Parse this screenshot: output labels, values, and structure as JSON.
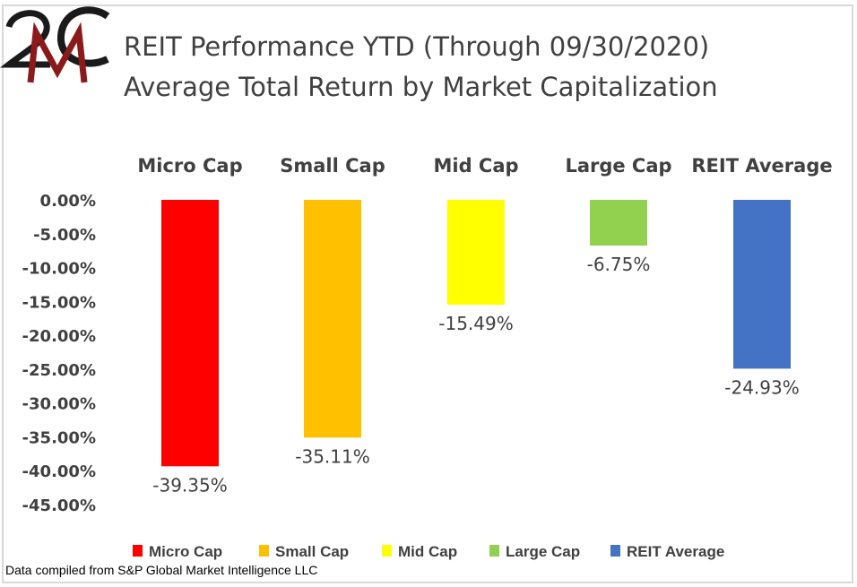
{
  "logo": {
    "text": "2MC"
  },
  "chart_data": {
    "type": "bar",
    "title": "REIT Performance YTD (Through 09/30/2020)",
    "subtitle": "Average Total Return by Market Capitalization",
    "categories": [
      "Micro Cap",
      "Small Cap",
      "Mid Cap",
      "Large Cap",
      "REIT Average"
    ],
    "values": [
      -39.35,
      -35.11,
      -15.49,
      -6.75,
      -24.93
    ],
    "data_labels": [
      "-39.35%",
      "-35.11%",
      "-15.49%",
      "-6.75%",
      "-24.93%"
    ],
    "colors": [
      "#ff0000",
      "#ffc000",
      "#ffff00",
      "#92d050",
      "#4472c4"
    ],
    "ylim": [
      -45,
      0
    ],
    "yticks": [
      "0.00%",
      "-5.00%",
      "-10.00%",
      "-15.00%",
      "-20.00%",
      "-25.00%",
      "-30.00%",
      "-35.00%",
      "-40.00%",
      "-45.00%"
    ],
    "ytick_values": [
      0,
      -5,
      -10,
      -15,
      -20,
      -25,
      -30,
      -35,
      -40,
      -45
    ],
    "legend": [
      "Micro Cap",
      "Small Cap",
      "Mid Cap",
      "Large Cap",
      "REIT Average"
    ],
    "legend_position": "bottom",
    "category_labels_position": "top",
    "grid": false,
    "xlabel": "",
    "ylabel": ""
  },
  "source": "Data compiled from S&P Global Market Intelligence LLC"
}
